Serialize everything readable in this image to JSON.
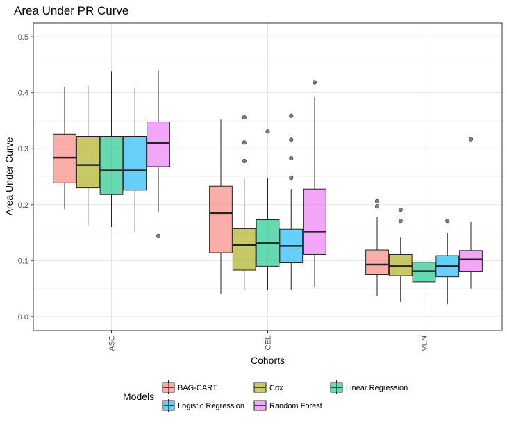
{
  "chart_data": {
    "type": "boxplot",
    "title": "Area Under PR Curve",
    "xlabel": "Cohorts",
    "ylabel": "Area Under Curve",
    "ylim": [
      -0.025,
      0.525
    ],
    "yticks": [
      "0.0",
      "0.1",
      "0.2",
      "0.3",
      "0.4",
      "0.5"
    ],
    "categories": [
      "ASC",
      "CEL",
      "VEN"
    ],
    "grid": true,
    "legend": {
      "title": "Models",
      "position": "bottom",
      "entries": [
        "BAG-CART",
        "Cox",
        "Linear Regression",
        "Logistic Regression",
        "Random Forest"
      ]
    },
    "series": [
      {
        "name": "BAG-CART",
        "color": "#F8766D",
        "boxes": [
          {
            "min": 0.192,
            "q1": 0.239,
            "median": 0.284,
            "q3": 0.326,
            "max": 0.411,
            "outliers": []
          },
          {
            "min": 0.04,
            "q1": 0.114,
            "median": 0.185,
            "q3": 0.233,
            "max": 0.352,
            "outliers": []
          },
          {
            "min": 0.036,
            "q1": 0.075,
            "median": 0.093,
            "q3": 0.119,
            "max": 0.178,
            "outliers": [
              0.197,
              0.206
            ]
          }
        ]
      },
      {
        "name": "Cox",
        "color": "#A3A500",
        "boxes": [
          {
            "min": 0.163,
            "q1": 0.23,
            "median": 0.271,
            "q3": 0.322,
            "max": 0.412,
            "outliers": []
          },
          {
            "min": 0.048,
            "q1": 0.083,
            "median": 0.128,
            "q3": 0.157,
            "max": 0.247,
            "outliers": [
              0.278,
              0.311,
              0.356
            ]
          },
          {
            "min": 0.026,
            "q1": 0.073,
            "median": 0.09,
            "q3": 0.111,
            "max": 0.141,
            "outliers": [
              0.171,
              0.191
            ]
          }
        ]
      },
      {
        "name": "Linear Regression",
        "color": "#00BF7D",
        "boxes": [
          {
            "min": 0.16,
            "q1": 0.218,
            "median": 0.261,
            "q3": 0.322,
            "max": 0.439,
            "outliers": []
          },
          {
            "min": 0.048,
            "q1": 0.09,
            "median": 0.131,
            "q3": 0.173,
            "max": 0.248,
            "outliers": [
              0.331
            ]
          },
          {
            "min": 0.031,
            "q1": 0.062,
            "median": 0.081,
            "q3": 0.097,
            "max": 0.131,
            "outliers": []
          }
        ]
      },
      {
        "name": "Logistic Regression",
        "color": "#00B0F6",
        "boxes": [
          {
            "min": 0.151,
            "q1": 0.226,
            "median": 0.261,
            "q3": 0.322,
            "max": 0.408,
            "outliers": []
          },
          {
            "min": 0.048,
            "q1": 0.096,
            "median": 0.126,
            "q3": 0.156,
            "max": 0.228,
            "outliers": [
              0.248,
              0.283,
              0.316,
              0.359
            ]
          },
          {
            "min": 0.022,
            "q1": 0.071,
            "median": 0.09,
            "q3": 0.109,
            "max": 0.149,
            "outliers": [
              0.171
            ]
          }
        ]
      },
      {
        "name": "Random Forest",
        "color": "#E76BF3",
        "boxes": [
          {
            "min": 0.186,
            "q1": 0.268,
            "median": 0.31,
            "q3": 0.348,
            "max": 0.44,
            "outliers": [
              0.144
            ]
          },
          {
            "min": 0.052,
            "q1": 0.111,
            "median": 0.152,
            "q3": 0.228,
            "max": 0.392,
            "outliers": [
              0.419
            ]
          },
          {
            "min": 0.05,
            "q1": 0.08,
            "median": 0.102,
            "q3": 0.118,
            "max": 0.169,
            "outliers": [
              0.317
            ]
          }
        ]
      }
    ]
  }
}
